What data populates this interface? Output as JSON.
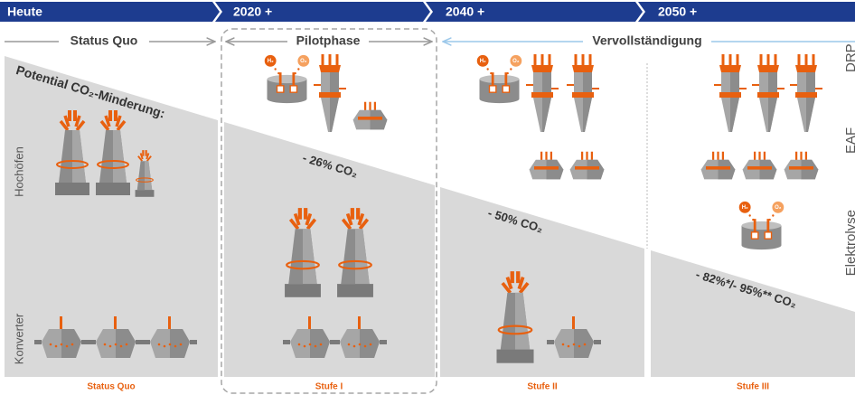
{
  "header": {
    "steps": [
      "Heute",
      "2020 +",
      "2040 +",
      "2050 +"
    ]
  },
  "phases": [
    "Status Quo",
    "Pilotphase",
    "Vervollständigung"
  ],
  "title": "Potential CO₂-Minderung:",
  "reductions": [
    "- 26% CO₂",
    "- 50% CO₂",
    "- 82%*/- 95%** CO₂"
  ],
  "row_labels": {
    "left": [
      "Hochöfen",
      "Konverter"
    ],
    "right": [
      "DRP",
      "EAF",
      "Elektrolyse"
    ]
  },
  "stages": [
    "Status Quo",
    "Stufe I",
    "Stufe II",
    "Stufe III"
  ],
  "electrolyzer_labels": {
    "h2": "H₂",
    "o2": "O₂"
  }
}
